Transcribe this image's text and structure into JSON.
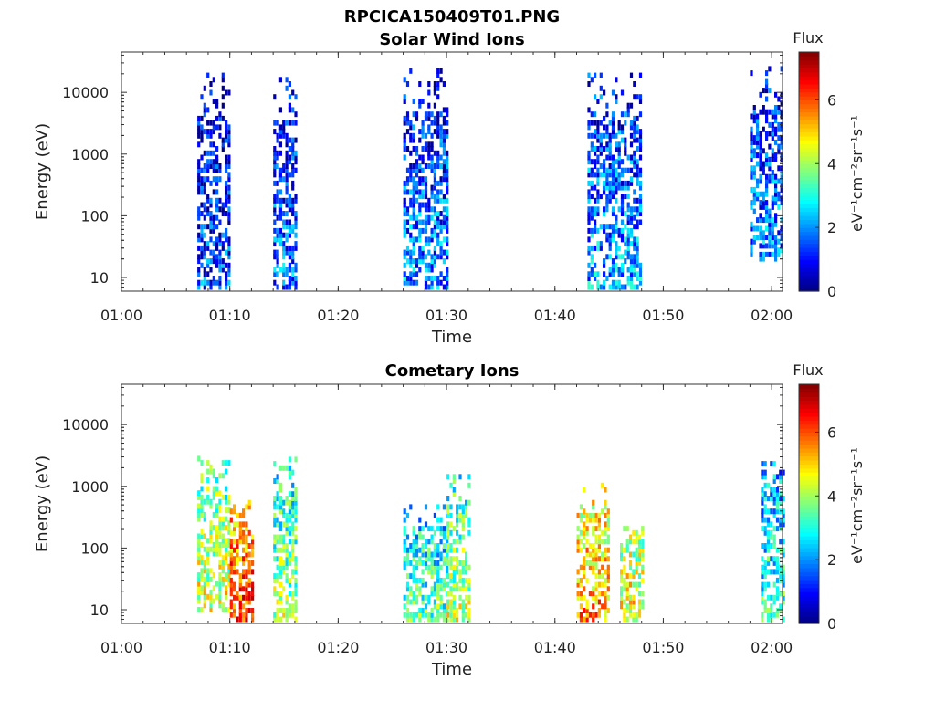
{
  "figure_title": "RPCICA150409T01.PNG",
  "chart_data": [
    {
      "type": "heatmap",
      "title": "Solar Wind Ions",
      "xlabel": "Time",
      "ylabel": "Energy (eV)",
      "y_scale": "log",
      "xlim": [
        "01:00",
        "02:01"
      ],
      "ylim": [
        6,
        45000
      ],
      "x_ticks": [
        "01:00",
        "01:10",
        "01:20",
        "01:30",
        "01:40",
        "01:50",
        "02:00"
      ],
      "y_ticks": [
        "10",
        "100",
        "1000",
        "10000"
      ],
      "colorbar": {
        "title": "Flux",
        "unit_label": "eV⁻¹cm⁻²sr⁻¹s⁻¹",
        "range": [
          0,
          7.5
        ],
        "ticks": [
          "0",
          "2",
          "4",
          "6"
        ],
        "colormap": "jet"
      },
      "bursts": [
        {
          "t_start": "01:07",
          "t_end": "01:10",
          "e_min": 7,
          "e_max": 22000,
          "flux_typical": 1.5
        },
        {
          "t_start": "01:14",
          "t_end": "01:16",
          "e_min": 7,
          "e_max": 17000,
          "flux_typical": 1.8
        },
        {
          "t_start": "01:26",
          "t_end": "01:30",
          "e_min": 7,
          "e_max": 25000,
          "flux_typical": 2.0
        },
        {
          "t_start": "01:43",
          "t_end": "01:48",
          "e_min": 7,
          "e_max": 22000,
          "flux_typical": 2.2
        },
        {
          "t_start": "01:58",
          "t_end": "02:01",
          "e_min": 20,
          "e_max": 27000,
          "flux_typical": 2.0
        }
      ]
    },
    {
      "type": "heatmap",
      "title": "Cometary Ions",
      "xlabel": "Time",
      "ylabel": "Energy (eV)",
      "y_scale": "log",
      "xlim": [
        "01:00",
        "02:01"
      ],
      "ylim": [
        6,
        45000
      ],
      "x_ticks": [
        "01:00",
        "01:10",
        "01:20",
        "01:30",
        "01:40",
        "01:50",
        "02:00"
      ],
      "y_ticks": [
        "10",
        "100",
        "1000",
        "10000"
      ],
      "colorbar": {
        "title": "Flux",
        "unit_label": "eV⁻¹cm⁻²sr⁻¹s⁻¹",
        "range": [
          0,
          7.5
        ],
        "ticks": [
          "0",
          "2",
          "4",
          "6"
        ],
        "colormap": "jet"
      },
      "bursts": [
        {
          "t_start": "01:07",
          "t_end": "01:10",
          "e_min": 10,
          "e_max": 3000,
          "flux_typical": 4.5
        },
        {
          "t_start": "01:10",
          "t_end": "01:12",
          "e_min": 7,
          "e_max": 600,
          "flux_typical": 6.2
        },
        {
          "t_start": "01:14",
          "t_end": "01:16",
          "e_min": 7,
          "e_max": 2800,
          "flux_typical": 4.0
        },
        {
          "t_start": "01:26",
          "t_end": "01:30",
          "e_min": 7,
          "e_max": 500,
          "flux_typical": 3.5
        },
        {
          "t_start": "01:30",
          "t_end": "01:32",
          "e_min": 7,
          "e_max": 1600,
          "flux_typical": 4.2
        },
        {
          "t_start": "01:42",
          "t_end": "01:45",
          "e_min": 7,
          "e_max": 1200,
          "flux_typical": 5.5
        },
        {
          "t_start": "01:46",
          "t_end": "01:48",
          "e_min": 7,
          "e_max": 500,
          "flux_typical": 4.8
        },
        {
          "t_start": "01:59",
          "t_end": "02:01",
          "e_min": 7,
          "e_max": 3000,
          "flux_typical": 3.2
        }
      ]
    }
  ]
}
